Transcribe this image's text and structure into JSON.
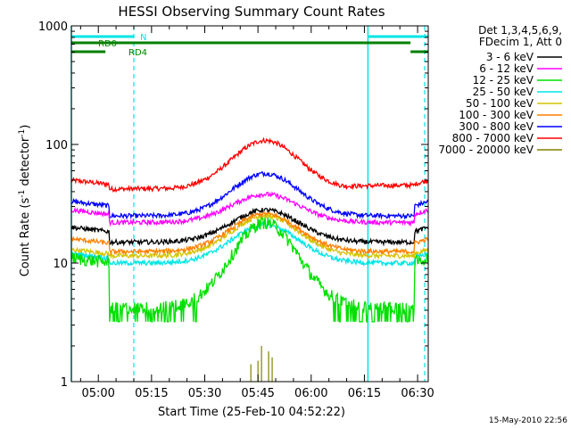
{
  "chart_data": {
    "type": "line",
    "title": "HESSI Observing Summary Count Rates",
    "xlabel": "Start Time (25-Feb-10 04:52:22)",
    "ylabel_main": "Count Rate (s",
    "ylabel_sup1": "-1",
    "ylabel_mid": " detector",
    "ylabel_sup2": "-1",
    "ylabel_end": ")",
    "yscale": "log",
    "ylim": [
      1,
      1000
    ],
    "xlim_minutes": [
      292.4,
      393
    ],
    "x_ticks": [
      {
        "label": "05:00",
        "minutes": 300
      },
      {
        "label": "05:15",
        "minutes": 315
      },
      {
        "label": "05:30",
        "minutes": 330
      },
      {
        "label": "05:45",
        "minutes": 345
      },
      {
        "label": "06:00",
        "minutes": 360
      },
      {
        "label": "06:15",
        "minutes": 375
      },
      {
        "label": "06:30",
        "minutes": 390
      }
    ],
    "y_ticks": [
      {
        "label": "1",
        "value": 1
      },
      {
        "label": "10",
        "value": 10
      },
      {
        "label": "100",
        "value": 100
      },
      {
        "label": "1000",
        "value": 1000
      }
    ],
    "legend": {
      "placement": "right",
      "header": [
        "Det 1,3,4,5,6,9,",
        "FDecim 1, Att 0"
      ]
    },
    "flags": [
      {
        "label": "N",
        "color": "#00e5e5",
        "segments": [
          [
            292.4,
            310
          ],
          [
            376,
            393
          ]
        ]
      },
      {
        "label": "RD0",
        "color": "#008000",
        "segments": [
          [
            292.4,
            388
          ]
        ]
      },
      {
        "label": "RD4",
        "color": "#008000",
        "segments": [
          [
            292.4,
            302
          ],
          [
            388,
            393
          ]
        ]
      }
    ],
    "night_boundaries_minutes": [
      292.4,
      376
    ],
    "saa_boundaries_minutes": [
      310,
      392
    ],
    "bg_time_minutes": [
      303,
      389
    ],
    "peak_time_minutes": 347,
    "peak_width_minutes": 9.5,
    "series": [
      {
        "name": "3 - 6 keV",
        "color": "#000000",
        "night": 20,
        "base": 15,
        "peak": 28
      },
      {
        "name": "6 - 12 keV",
        "color": "#ff00ff",
        "night": 28,
        "base": 22,
        "peak": 38
      },
      {
        "name": "12 - 25 keV",
        "color": "#00e000",
        "night": 11,
        "base": 4.2,
        "peak": 22
      },
      {
        "name": "25 - 50 keV",
        "color": "#00e5e5",
        "night": 12,
        "base": 10,
        "peak": 21
      },
      {
        "name": "50 - 100 keV",
        "color": "#d4c400",
        "night": 13,
        "base": 11.5,
        "peak": 25
      },
      {
        "name": "100 - 300 keV",
        "color": "#ff8000",
        "night": 16,
        "base": 12.5,
        "peak": 26
      },
      {
        "name": "300 - 800 keV",
        "color": "#0000ff",
        "night": 33,
        "base": 25,
        "peak": 57
      },
      {
        "name": "800 - 7000 keV",
        "color": "#ff0000",
        "night": 50,
        "base": 42,
        "peak": 108
      },
      {
        "name": "7000 - 20000 keV",
        "color": "#808000",
        "night": 0,
        "base": 0,
        "peak": 2
      }
    ]
  },
  "timestamp": "15-May-2010 22:56"
}
